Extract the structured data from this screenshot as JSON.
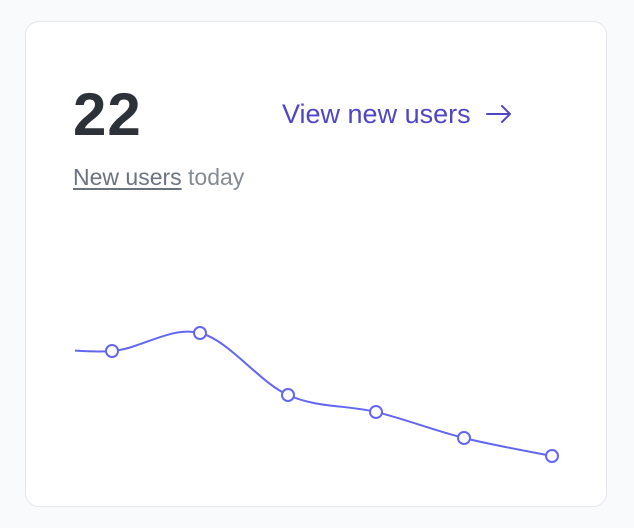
{
  "stat": {
    "value": 22,
    "link_text": "New users",
    "rest_text": "today"
  },
  "link": "View new users",
  "chart_data": {
    "type": "line",
    "values": [
      12.4,
      11.9,
      13.7,
      7.5,
      5.8,
      3.2,
      1.4
    ],
    "color": "#6366f1"
  }
}
